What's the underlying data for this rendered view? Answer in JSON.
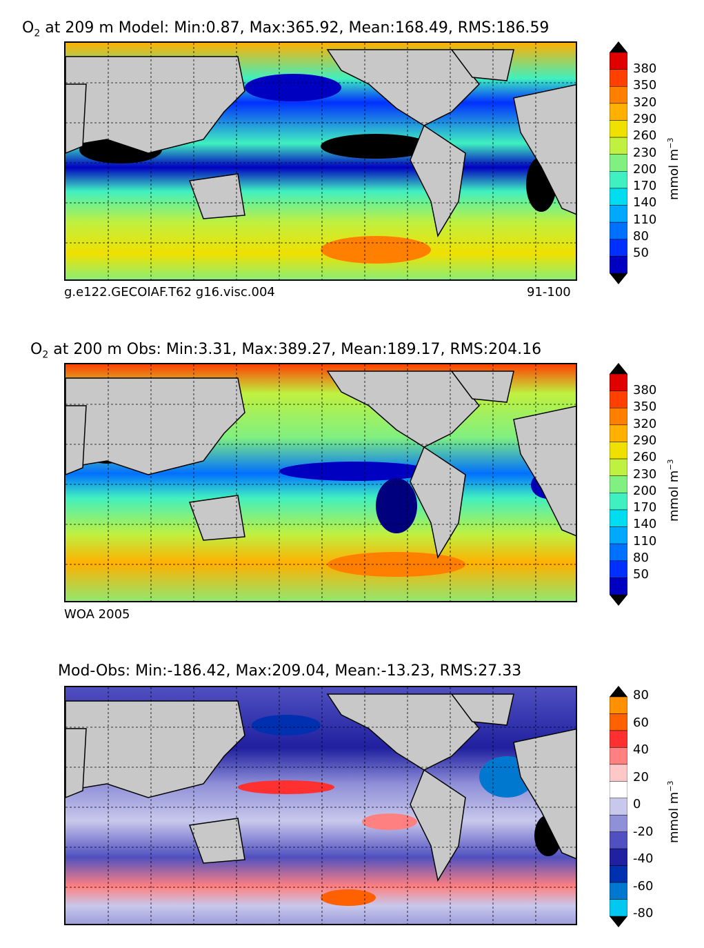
{
  "panels": [
    {
      "title_species": "O",
      "title_sub": "2",
      "title_rest": " at 209 m Model: Min:0.87, Max:365.92, Mean:168.49, RMS:186.59",
      "left_label": "g.e122.GECOIAF.T62 g16.visc.004",
      "right_label": "91-100",
      "units": "mmol m",
      "units_exp": "−3",
      "ticks": [
        "380",
        "350",
        "320",
        "290",
        "260",
        "230",
        "200",
        "170",
        "140",
        "110",
        "80",
        "50"
      ]
    },
    {
      "title_species": "O",
      "title_sub": "2",
      "title_rest": " at 200 m Obs: Min:3.31, Max:389.27, Mean:189.17, RMS:204.16",
      "left_label": "WOA 2005",
      "right_label": "",
      "units": "mmol m",
      "units_exp": "−3",
      "ticks": [
        "380",
        "350",
        "320",
        "290",
        "260",
        "230",
        "200",
        "170",
        "140",
        "110",
        "80",
        "50"
      ]
    },
    {
      "title_species": "",
      "title_sub": "",
      "title_rest": "Mod-Obs: Min:-186.42, Max:209.04, Mean:-13.23, RMS:27.33",
      "left_label": "",
      "right_label": "",
      "units": "mmol m",
      "units_exp": "−3",
      "ticks": [
        "80",
        "60",
        "40",
        "20",
        "0",
        "-20",
        "-40",
        "-60",
        "-80"
      ]
    }
  ],
  "colors": {
    "land": "#c8c8c8",
    "o2_scale": [
      "#00007f",
      "#0000c0",
      "#0030ff",
      "#0070ff",
      "#00a8ff",
      "#00dcf0",
      "#40f0c0",
      "#80f080",
      "#c0f040",
      "#f0e000",
      "#ffb000",
      "#ff8000",
      "#ff4000",
      "#e00000",
      "#800000"
    ],
    "diff_scale": [
      "#00ffff",
      "#00c8f0",
      "#0078d0",
      "#0030b0",
      "#2020a0",
      "#5050c0",
      "#9090d8",
      "#c8c8ec",
      "#ffffff",
      "#ffc8c8",
      "#ff8080",
      "#ff3030",
      "#ff6000",
      "#ff9000",
      "#ffe000"
    ]
  }
}
